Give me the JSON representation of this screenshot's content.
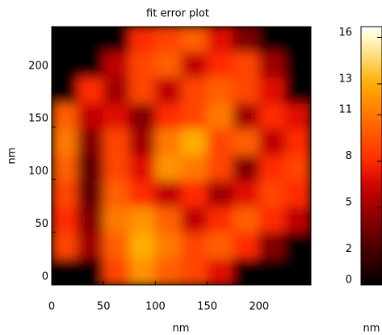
{
  "chart_data": {
    "type": "heatmap",
    "title": "fit error plot",
    "xlabel": "nm",
    "ylabel": "nm",
    "colorbar_label": "nm",
    "x": [
      12.5,
      37.5,
      62.5,
      87.5,
      112.5,
      137.5,
      162.5,
      187.5,
      212.5,
      237.5
    ],
    "y": [
      233,
      208,
      184,
      159,
      135,
      110,
      86,
      61,
      37,
      12
    ],
    "values": [
      [
        0,
        0,
        0,
        8,
        9,
        10,
        7,
        4,
        0,
        0
      ],
      [
        0,
        0,
        6,
        9,
        10,
        6,
        8,
        9,
        5,
        0
      ],
      [
        0,
        8,
        5,
        9,
        6,
        9,
        10,
        9,
        7,
        0
      ],
      [
        10,
        6,
        7,
        4,
        8,
        9,
        11,
        5,
        8,
        7
      ],
      [
        11,
        4,
        9,
        5,
        11,
        13,
        9,
        10,
        6,
        8
      ],
      [
        10,
        3,
        9,
        7,
        12,
        11,
        9,
        4,
        8,
        9
      ],
      [
        9,
        3,
        10,
        8,
        6,
        8,
        5,
        7,
        9,
        8
      ],
      [
        8,
        4,
        11,
        12,
        10,
        6,
        8,
        10,
        8,
        6
      ],
      [
        9,
        5,
        10,
        13,
        11,
        9,
        10,
        8,
        4,
        0
      ],
      [
        0,
        0,
        9,
        12,
        10,
        9,
        7,
        0,
        0,
        0
      ]
    ],
    "xlim": [
      0,
      250
    ],
    "ylim": [
      0,
      245
    ],
    "xticks": [
      0,
      50,
      100,
      150,
      200
    ],
    "yticks": [
      0,
      50,
      100,
      150,
      200
    ],
    "clim": [
      0,
      16.7
    ],
    "colorbar_ticks": [
      0,
      2,
      5,
      8,
      11,
      13,
      16
    ]
  }
}
